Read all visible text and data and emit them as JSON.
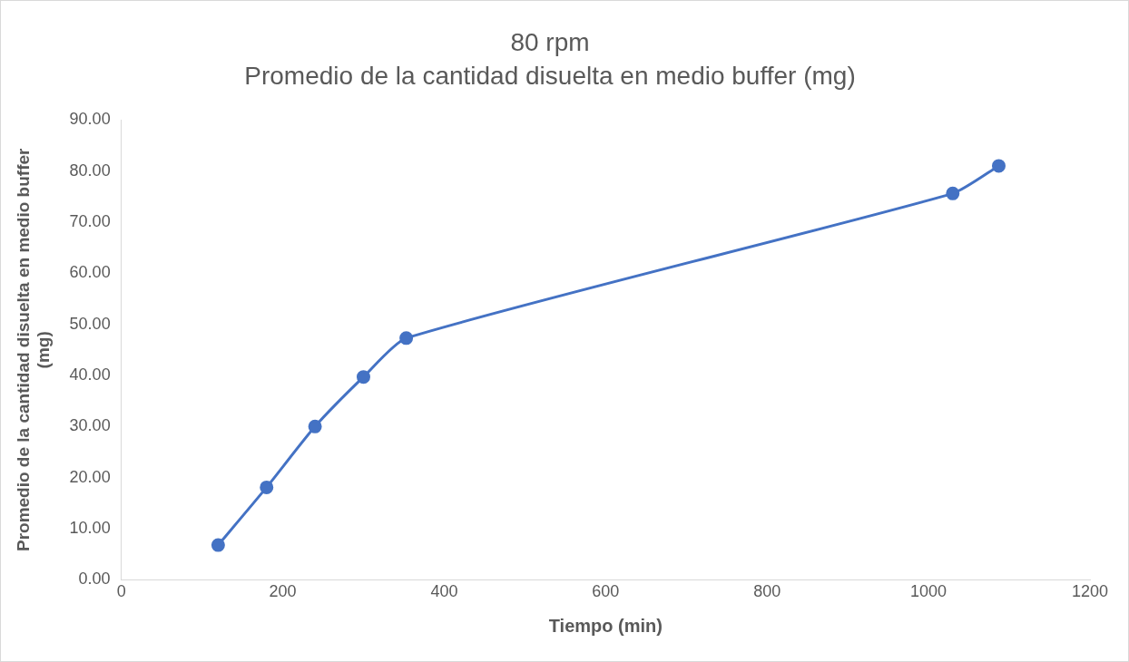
{
  "chart_data": {
    "type": "line",
    "title": "80 rpm",
    "subtitle": "Promedio de la cantidad disuelta en medio buffer (mg)",
    "xlabel": "Tiempo (min)",
    "ylabel": "Promedio de la cantidad disuelta en medio buffer (mg)",
    "x": [
      120,
      180,
      240,
      300,
      353,
      1030,
      1087
    ],
    "series": [
      {
        "color": "#4472c4",
        "values": [
          6.8,
          18.1,
          30.0,
          39.7,
          47.3,
          75.6,
          81.0
        ]
      }
    ],
    "xlim": [
      0,
      1200
    ],
    "xticks": [
      0,
      200,
      400,
      600,
      800,
      1000,
      1200
    ],
    "ylim": [
      0,
      90
    ],
    "yticks": [
      {
        "value": 0,
        "label": "0.00"
      },
      {
        "value": 10,
        "label": "10.00"
      },
      {
        "value": 20,
        "label": "20.00"
      },
      {
        "value": 30,
        "label": "30.00"
      },
      {
        "value": 40,
        "label": "40.00"
      },
      {
        "value": 50,
        "label": "50.00"
      },
      {
        "value": 60,
        "label": "60.00"
      },
      {
        "value": 70,
        "label": "70.00"
      },
      {
        "value": 80,
        "label": "80.00"
      },
      {
        "value": 90,
        "label": "90.00"
      }
    ],
    "grid": false,
    "legend": false,
    "marker": "circle",
    "line_style": "solid"
  }
}
